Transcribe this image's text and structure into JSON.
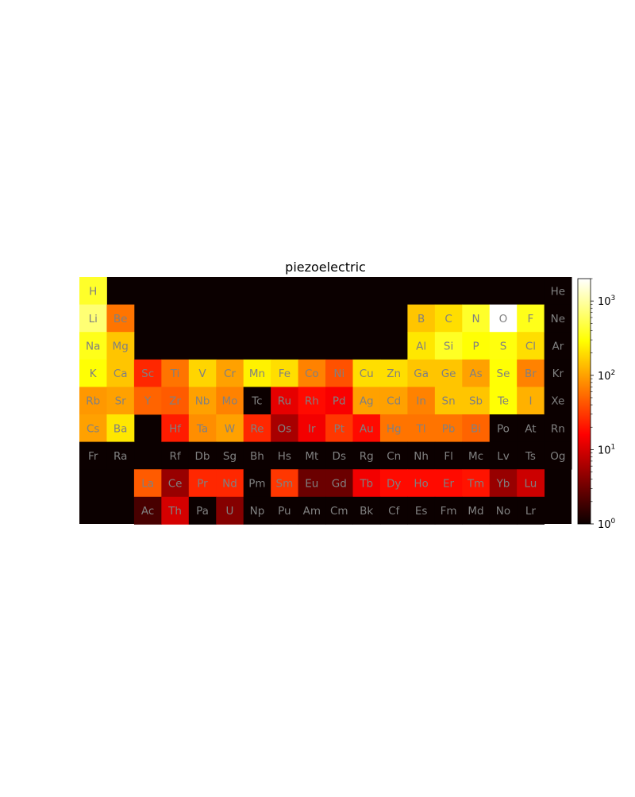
{
  "chart_data": {
    "type": "heatmap",
    "title": "piezoelectric",
    "color_scale": "log",
    "colormap": "hot",
    "zlim": [
      1,
      2000
    ],
    "colorbar": {
      "ticks": [
        {
          "value": 1,
          "base": "10",
          "exp": "0"
        },
        {
          "value": 10,
          "base": "10",
          "exp": "1"
        },
        {
          "value": 100,
          "base": "10",
          "exp": "2"
        },
        {
          "value": 1000,
          "base": "10",
          "exp": "3"
        }
      ]
    },
    "label_color": "#808080",
    "empty_color": "#0b0000",
    "elements": [
      {
        "symbol": "H",
        "row": 1,
        "col": 1,
        "value": 400
      },
      {
        "symbol": "He",
        "row": 1,
        "col": 18,
        "value": 0
      },
      {
        "symbol": "Li",
        "row": 2,
        "col": 1,
        "value": 700
      },
      {
        "symbol": "Be",
        "row": 2,
        "col": 2,
        "value": 60
      },
      {
        "symbol": "B",
        "row": 2,
        "col": 13,
        "value": 150
      },
      {
        "symbol": "C",
        "row": 2,
        "col": 14,
        "value": 200
      },
      {
        "symbol": "N",
        "row": 2,
        "col": 15,
        "value": 400
      },
      {
        "symbol": "O",
        "row": 2,
        "col": 16,
        "value": 2000
      },
      {
        "symbol": "F",
        "row": 2,
        "col": 17,
        "value": 350
      },
      {
        "symbol": "Ne",
        "row": 2,
        "col": 18,
        "value": 0
      },
      {
        "symbol": "Na",
        "row": 3,
        "col": 1,
        "value": 350
      },
      {
        "symbol": "Mg",
        "row": 3,
        "col": 2,
        "value": 150
      },
      {
        "symbol": "Al",
        "row": 3,
        "col": 13,
        "value": 220
      },
      {
        "symbol": "Si",
        "row": 3,
        "col": 14,
        "value": 380
      },
      {
        "symbol": "P",
        "row": 3,
        "col": 15,
        "value": 300
      },
      {
        "symbol": "S",
        "row": 3,
        "col": 16,
        "value": 320
      },
      {
        "symbol": "Cl",
        "row": 3,
        "col": 17,
        "value": 200
      },
      {
        "symbol": "Ar",
        "row": 3,
        "col": 18,
        "value": 0
      },
      {
        "symbol": "K",
        "row": 4,
        "col": 1,
        "value": 300
      },
      {
        "symbol": "Ca",
        "row": 4,
        "col": 2,
        "value": 150
      },
      {
        "symbol": "Sc",
        "row": 4,
        "col": 3,
        "value": 25
      },
      {
        "symbol": "Ti",
        "row": 4,
        "col": 4,
        "value": 60
      },
      {
        "symbol": "V",
        "row": 4,
        "col": 5,
        "value": 180
      },
      {
        "symbol": "Cr",
        "row": 4,
        "col": 6,
        "value": 100
      },
      {
        "symbol": "Mn",
        "row": 4,
        "col": 7,
        "value": 250
      },
      {
        "symbol": "Fe",
        "row": 4,
        "col": 8,
        "value": 200
      },
      {
        "symbol": "Co",
        "row": 4,
        "col": 9,
        "value": 70
      },
      {
        "symbol": "Ni",
        "row": 4,
        "col": 10,
        "value": 40
      },
      {
        "symbol": "Cu",
        "row": 4,
        "col": 11,
        "value": 200
      },
      {
        "symbol": "Zn",
        "row": 4,
        "col": 12,
        "value": 200
      },
      {
        "symbol": "Ga",
        "row": 4,
        "col": 13,
        "value": 150
      },
      {
        "symbol": "Ge",
        "row": 4,
        "col": 14,
        "value": 150
      },
      {
        "symbol": "As",
        "row": 4,
        "col": 15,
        "value": 100
      },
      {
        "symbol": "Se",
        "row": 4,
        "col": 16,
        "value": 300
      },
      {
        "symbol": "Br",
        "row": 4,
        "col": 17,
        "value": 70
      },
      {
        "symbol": "Kr",
        "row": 4,
        "col": 18,
        "value": 0
      },
      {
        "symbol": "Rb",
        "row": 5,
        "col": 1,
        "value": 90
      },
      {
        "symbol": "Sr",
        "row": 5,
        "col": 2,
        "value": 100
      },
      {
        "symbol": "Y",
        "row": 5,
        "col": 3,
        "value": 50
      },
      {
        "symbol": "Zr",
        "row": 5,
        "col": 4,
        "value": 45
      },
      {
        "symbol": "Nb",
        "row": 5,
        "col": 5,
        "value": 100
      },
      {
        "symbol": "Mo",
        "row": 5,
        "col": 6,
        "value": 70
      },
      {
        "symbol": "Tc",
        "row": 5,
        "col": 7,
        "value": 0
      },
      {
        "symbol": "Ru",
        "row": 5,
        "col": 8,
        "value": 12
      },
      {
        "symbol": "Rh",
        "row": 5,
        "col": 9,
        "value": 18
      },
      {
        "symbol": "Pd",
        "row": 5,
        "col": 10,
        "value": 15
      },
      {
        "symbol": "Ag",
        "row": 5,
        "col": 11,
        "value": 100
      },
      {
        "symbol": "Cd",
        "row": 5,
        "col": 12,
        "value": 100
      },
      {
        "symbol": "In",
        "row": 5,
        "col": 13,
        "value": 70
      },
      {
        "symbol": "Sn",
        "row": 5,
        "col": 14,
        "value": 150
      },
      {
        "symbol": "Sb",
        "row": 5,
        "col": 15,
        "value": 150
      },
      {
        "symbol": "Te",
        "row": 5,
        "col": 16,
        "value": 300
      },
      {
        "symbol": "I",
        "row": 5,
        "col": 17,
        "value": 120
      },
      {
        "symbol": "Xe",
        "row": 5,
        "col": 18,
        "value": 0
      },
      {
        "symbol": "Cs",
        "row": 6,
        "col": 1,
        "value": 100
      },
      {
        "symbol": "Ba",
        "row": 6,
        "col": 2,
        "value": 220
      },
      {
        "symbol": "Hf",
        "row": 6,
        "col": 4,
        "value": 22
      },
      {
        "symbol": "Ta",
        "row": 6,
        "col": 5,
        "value": 80
      },
      {
        "symbol": "W",
        "row": 6,
        "col": 6,
        "value": 100
      },
      {
        "symbol": "Re",
        "row": 6,
        "col": 7,
        "value": 25
      },
      {
        "symbol": "Os",
        "row": 6,
        "col": 8,
        "value": 6
      },
      {
        "symbol": "Ir",
        "row": 6,
        "col": 9,
        "value": 14
      },
      {
        "symbol": "Pt",
        "row": 6,
        "col": 10,
        "value": 30
      },
      {
        "symbol": "Au",
        "row": 6,
        "col": 11,
        "value": 18
      },
      {
        "symbol": "Hg",
        "row": 6,
        "col": 12,
        "value": 60
      },
      {
        "symbol": "Tl",
        "row": 6,
        "col": 13,
        "value": 60
      },
      {
        "symbol": "Pb",
        "row": 6,
        "col": 14,
        "value": 60
      },
      {
        "symbol": "Bi",
        "row": 6,
        "col": 15,
        "value": 50
      },
      {
        "symbol": "Po",
        "row": 6,
        "col": 16,
        "value": 0
      },
      {
        "symbol": "At",
        "row": 6,
        "col": 17,
        "value": 0
      },
      {
        "symbol": "Rn",
        "row": 6,
        "col": 18,
        "value": 0
      },
      {
        "symbol": "Fr",
        "row": 7,
        "col": 1,
        "value": 0
      },
      {
        "symbol": "Ra",
        "row": 7,
        "col": 2,
        "value": 0
      },
      {
        "symbol": "Rf",
        "row": 7,
        "col": 4,
        "value": 0
      },
      {
        "symbol": "Db",
        "row": 7,
        "col": 5,
        "value": 0
      },
      {
        "symbol": "Sg",
        "row": 7,
        "col": 6,
        "value": 0
      },
      {
        "symbol": "Bh",
        "row": 7,
        "col": 7,
        "value": 0
      },
      {
        "symbol": "Hs",
        "row": 7,
        "col": 8,
        "value": 0
      },
      {
        "symbol": "Mt",
        "row": 7,
        "col": 9,
        "value": 0
      },
      {
        "symbol": "Ds",
        "row": 7,
        "col": 10,
        "value": 0
      },
      {
        "symbol": "Rg",
        "row": 7,
        "col": 11,
        "value": 0
      },
      {
        "symbol": "Cn",
        "row": 7,
        "col": 12,
        "value": 0
      },
      {
        "symbol": "Nh",
        "row": 7,
        "col": 13,
        "value": 0
      },
      {
        "symbol": "Fl",
        "row": 7,
        "col": 14,
        "value": 0
      },
      {
        "symbol": "Mc",
        "row": 7,
        "col": 15,
        "value": 0
      },
      {
        "symbol": "Lv",
        "row": 7,
        "col": 16,
        "value": 0
      },
      {
        "symbol": "Ts",
        "row": 7,
        "col": 17,
        "value": 0
      },
      {
        "symbol": "Og",
        "row": 7,
        "col": 18,
        "value": 0
      },
      {
        "symbol": "La",
        "row": 8,
        "col": 3,
        "value": 45
      },
      {
        "symbol": "Ce",
        "row": 8,
        "col": 4,
        "value": 5
      },
      {
        "symbol": "Pr",
        "row": 8,
        "col": 5,
        "value": 25
      },
      {
        "symbol": "Nd",
        "row": 8,
        "col": 6,
        "value": 25
      },
      {
        "symbol": "Pm",
        "row": 8,
        "col": 7,
        "value": 0
      },
      {
        "symbol": "Sm",
        "row": 8,
        "col": 8,
        "value": 30
      },
      {
        "symbol": "Eu",
        "row": 8,
        "col": 9,
        "value": 3
      },
      {
        "symbol": "Gd",
        "row": 8,
        "col": 10,
        "value": 3
      },
      {
        "symbol": "Tb",
        "row": 8,
        "col": 11,
        "value": 14
      },
      {
        "symbol": "Dy",
        "row": 8,
        "col": 12,
        "value": 18
      },
      {
        "symbol": "Ho",
        "row": 8,
        "col": 13,
        "value": 18
      },
      {
        "symbol": "Er",
        "row": 8,
        "col": 14,
        "value": 18
      },
      {
        "symbol": "Tm",
        "row": 8,
        "col": 15,
        "value": 20
      },
      {
        "symbol": "Yb",
        "row": 8,
        "col": 16,
        "value": 5
      },
      {
        "symbol": "Lu",
        "row": 8,
        "col": 17,
        "value": 9
      },
      {
        "symbol": "Ac",
        "row": 9,
        "col": 3,
        "value": 2
      },
      {
        "symbol": "Th",
        "row": 9,
        "col": 4,
        "value": 10
      },
      {
        "symbol": "Pa",
        "row": 9,
        "col": 5,
        "value": 0
      },
      {
        "symbol": "U",
        "row": 9,
        "col": 6,
        "value": 4
      },
      {
        "symbol": "Np",
        "row": 9,
        "col": 7,
        "value": 0
      },
      {
        "symbol": "Pu",
        "row": 9,
        "col": 8,
        "value": 0
      },
      {
        "symbol": "Am",
        "row": 9,
        "col": 9,
        "value": 0
      },
      {
        "symbol": "Cm",
        "row": 9,
        "col": 10,
        "value": 0
      },
      {
        "symbol": "Bk",
        "row": 9,
        "col": 11,
        "value": 0
      },
      {
        "symbol": "Cf",
        "row": 9,
        "col": 12,
        "value": 0
      },
      {
        "symbol": "Es",
        "row": 9,
        "col": 13,
        "value": 0
      },
      {
        "symbol": "Fm",
        "row": 9,
        "col": 14,
        "value": 0
      },
      {
        "symbol": "Md",
        "row": 9,
        "col": 15,
        "value": 0
      },
      {
        "symbol": "No",
        "row": 9,
        "col": 16,
        "value": 0
      },
      {
        "symbol": "Lr",
        "row": 9,
        "col": 17,
        "value": 0
      }
    ]
  }
}
